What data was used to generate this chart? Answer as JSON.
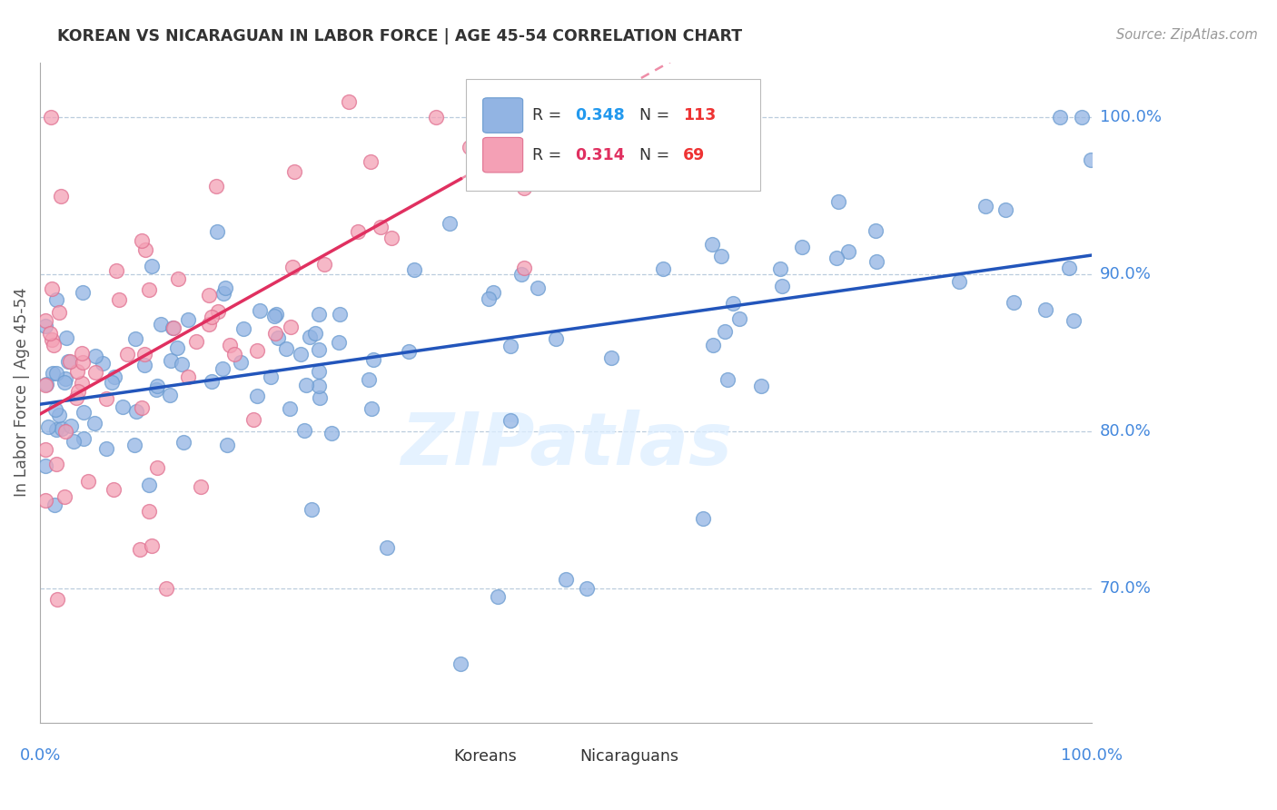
{
  "title": "KOREAN VS NICARAGUAN IN LABOR FORCE | AGE 45-54 CORRELATION CHART",
  "source": "Source: ZipAtlas.com",
  "ylabel": "In Labor Force | Age 45-54",
  "watermark": "ZIPatlas",
  "xlim": [
    0.0,
    1.0
  ],
  "ylim": [
    0.615,
    1.035
  ],
  "yticks": [
    0.7,
    0.8,
    0.9,
    1.0
  ],
  "ytick_labels": [
    "70.0%",
    "80.0%",
    "90.0%",
    "100.0%"
  ],
  "korean_color": "#92B4E3",
  "korean_edge_color": "#6A9BD0",
  "nicaraguan_color": "#F4A0B5",
  "nicaraguan_edge_color": "#E07090",
  "korean_line_color": "#2255BB",
  "nicaraguan_line_color": "#E03060",
  "korean_R": 0.348,
  "korean_N": 113,
  "nicaraguan_R": 0.314,
  "nicaraguan_N": 69,
  "legend_R_color": "#2299EE",
  "legend_N_color": "#EE3333",
  "background_color": "#ffffff",
  "grid_color": "#BBCCDD",
  "title_color": "#333333",
  "axis_label_color": "#555555",
  "right_label_color": "#4488DD",
  "korean_line_intercept": 0.828,
  "korean_line_slope": 0.098,
  "nicaraguan_line_intercept": 0.795,
  "nicaraguan_line_slope": 0.38
}
